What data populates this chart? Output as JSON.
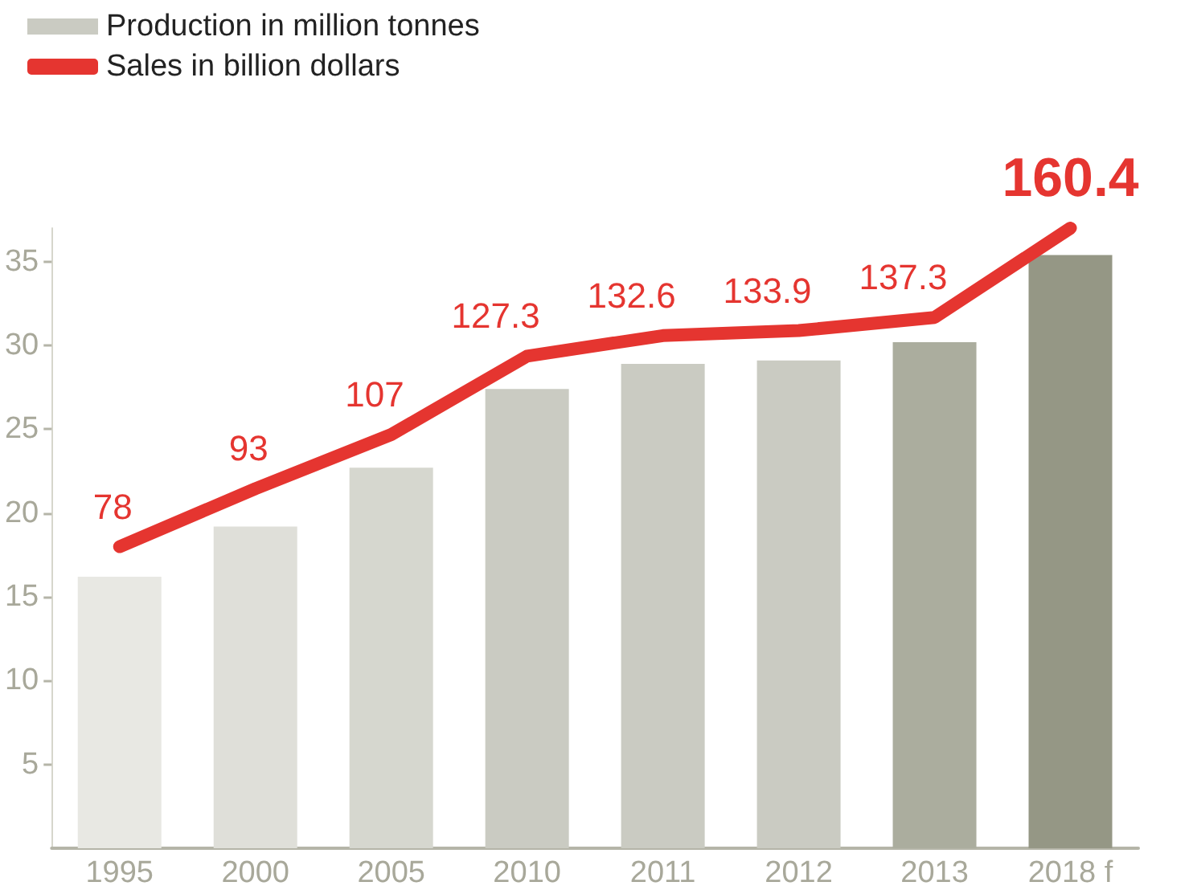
{
  "chart_data": {
    "type": "bar",
    "categories": [
      "1995",
      "2000",
      "2005",
      "2010",
      "2011",
      "2012",
      "2013",
      "2018 f"
    ],
    "series": [
      {
        "name": "Production in million tonnes",
        "color": "#cacbc2",
        "colors": [
          "#e8e8e3",
          "#dfdfd9",
          "#d6d7cf",
          "#cacbc2",
          "#cacbc2",
          "#cacbc2",
          "#abad9e",
          "#959785"
        ],
        "values": [
          16.2,
          19.2,
          22.7,
          27.4,
          28.9,
          29.1,
          30.2,
          35.4
        ]
      },
      {
        "name": "Sales in billion dollars",
        "type": "line",
        "axis": "y2",
        "color": "#e53530",
        "data_labels": true,
        "values": [
          78,
          93,
          107,
          127.3,
          132.6,
          133.9,
          137.3,
          160.4
        ]
      }
    ],
    "ylim": [
      0,
      37
    ],
    "yticks": [
      5,
      10,
      15,
      20,
      25,
      30,
      35
    ],
    "grid": false,
    "legend": "top left",
    "marker": "none",
    "line_style": "solid"
  }
}
